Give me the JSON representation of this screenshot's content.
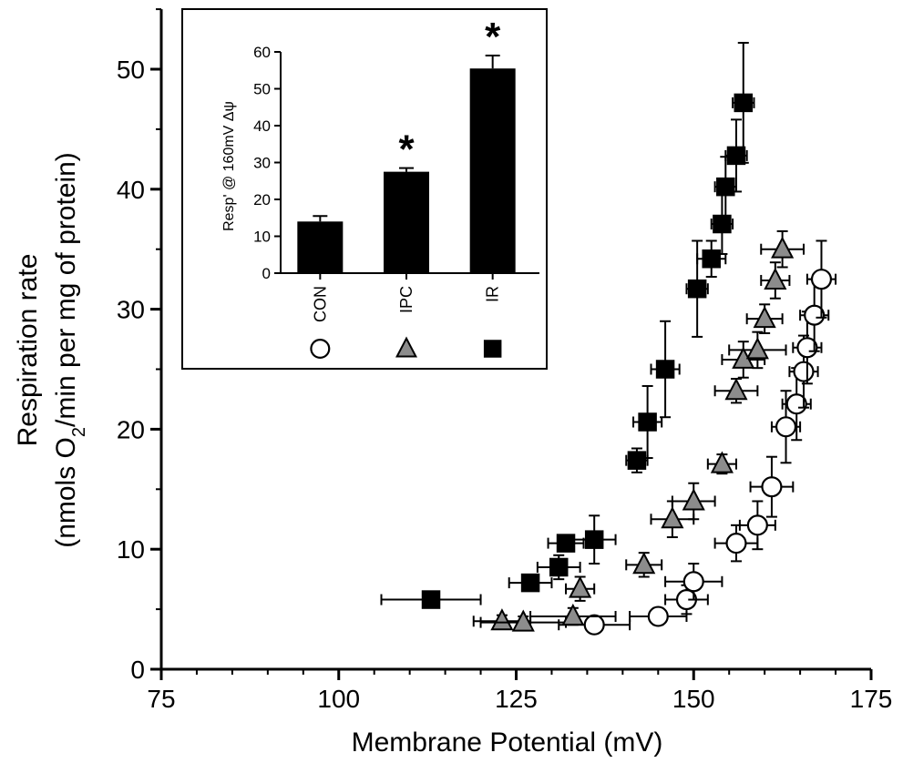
{
  "chart_data": [
    {
      "type": "scatter",
      "title": "",
      "xlabel": "Membrane Potential (mV)",
      "ylabel_line1": "Respiration rate",
      "ylabel_line2_prefix": "(nmols O",
      "ylabel_line2_sub": "2",
      "ylabel_line2_suffix": "/min per mg of protein)",
      "xlim": [
        75,
        175
      ],
      "ylim": [
        0,
        55
      ],
      "xticks": [
        "75",
        "100",
        "125",
        "150",
        "175"
      ],
      "yticks": [
        "0",
        "10",
        "20",
        "30",
        "40",
        "50"
      ],
      "grid": false,
      "series": [
        {
          "marker": "circle",
          "fill": "#ffffff",
          "points": [
            {
              "x": 136,
              "y": 3.7,
              "xerr": 5,
              "yerr": 0.6
            },
            {
              "x": 145,
              "y": 4.4,
              "xerr": 4,
              "yerr": 0.7
            },
            {
              "x": 149,
              "y": 5.8,
              "xerr": 3,
              "yerr": 1.2
            },
            {
              "x": 150,
              "y": 7.3,
              "xerr": 4,
              "yerr": 1.5
            },
            {
              "x": 156,
              "y": 10.5,
              "xerr": 3,
              "yerr": 1.5
            },
            {
              "x": 159,
              "y": 12,
              "xerr": 2.5,
              "yerr": 2
            },
            {
              "x": 161,
              "y": 15.2,
              "xerr": 3,
              "yerr": 2.5
            },
            {
              "x": 163,
              "y": 20.2,
              "xerr": 2,
              "yerr": 3
            },
            {
              "x": 164.5,
              "y": 22.1,
              "xerr": 2,
              "yerr": 3
            },
            {
              "x": 165.5,
              "y": 24.8,
              "xerr": 2,
              "yerr": 3
            },
            {
              "x": 166,
              "y": 26.8,
              "xerr": 2,
              "yerr": 3
            },
            {
              "x": 167,
              "y": 29.5,
              "xerr": 2,
              "yerr": 3
            },
            {
              "x": 168,
              "y": 32.5,
              "xerr": 2,
              "yerr": 3.2
            }
          ]
        },
        {
          "marker": "triangle",
          "fill": "#8c8c8c",
          "points": [
            {
              "x": 123,
              "y": 4,
              "xerr": 4,
              "yerr": 0.5
            },
            {
              "x": 126,
              "y": 3.9,
              "xerr": 6,
              "yerr": 0.5
            },
            {
              "x": 133,
              "y": 4.4,
              "xerr": 6,
              "yerr": 0.7
            },
            {
              "x": 134,
              "y": 6.7,
              "xerr": 2,
              "yerr": 1
            },
            {
              "x": 143,
              "y": 8.7,
              "xerr": 2.5,
              "yerr": 1
            },
            {
              "x": 147,
              "y": 12.5,
              "xerr": 3,
              "yerr": 1.5
            },
            {
              "x": 150,
              "y": 14,
              "xerr": 3,
              "yerr": 1.5
            },
            {
              "x": 154,
              "y": 17.1,
              "xerr": 2,
              "yerr": 0.8
            },
            {
              "x": 156,
              "y": 23.2,
              "xerr": 3,
              "yerr": 1
            },
            {
              "x": 157,
              "y": 25.8,
              "xerr": 3,
              "yerr": 1.5
            },
            {
              "x": 159,
              "y": 26.6,
              "xerr": 4,
              "yerr": 1.5
            },
            {
              "x": 160,
              "y": 29.2,
              "xerr": 2.5,
              "yerr": 1.2
            },
            {
              "x": 161.5,
              "y": 32.4,
              "xerr": 2,
              "yerr": 1.5
            },
            {
              "x": 162.5,
              "y": 35,
              "xerr": 3,
              "yerr": 1.5
            }
          ]
        },
        {
          "marker": "square",
          "fill": "#000000",
          "points": [
            {
              "x": 113,
              "y": 5.8,
              "xerr": 7,
              "yerr": 0
            },
            {
              "x": 127,
              "y": 7.2,
              "xerr": 3,
              "yerr": 0
            },
            {
              "x": 131,
              "y": 8.5,
              "xerr": 3,
              "yerr": 1
            },
            {
              "x": 132,
              "y": 10.5,
              "xerr": 2.5,
              "yerr": 0.5
            },
            {
              "x": 136,
              "y": 10.8,
              "xerr": 3,
              "yerr": 2
            },
            {
              "x": 142,
              "y": 17.4,
              "xerr": 1.5,
              "yerr": 1
            },
            {
              "x": 143.5,
              "y": 20.6,
              "xerr": 2,
              "yerr": 3
            },
            {
              "x": 146,
              "y": 25,
              "xerr": 2,
              "yerr": 4
            },
            {
              "x": 150.5,
              "y": 31.7,
              "xerr": 1.5,
              "yerr": 4
            },
            {
              "x": 152.5,
              "y": 34.2,
              "xerr": 2,
              "yerr": 1.5
            },
            {
              "x": 154,
              "y": 37.1,
              "xerr": 1.5,
              "yerr": 2.5
            },
            {
              "x": 154.5,
              "y": 40.2,
              "xerr": 1.5,
              "yerr": 2.5
            },
            {
              "x": 156,
              "y": 42.8,
              "xerr": 1.5,
              "yerr": 3
            },
            {
              "x": 157,
              "y": 47.2,
              "xerr": 1.5,
              "yerr": 5
            }
          ]
        }
      ]
    },
    {
      "type": "bar",
      "title": "",
      "ylabel": "Resp' @ 160mV Δψ",
      "ylim": [
        0,
        60
      ],
      "yticks": [
        "0",
        "10",
        "20",
        "30",
        "40",
        "50",
        "60"
      ],
      "categories": [
        "CON",
        "IPC",
        "IR"
      ],
      "values": [
        14,
        27.5,
        55.5
      ],
      "errors": [
        1.5,
        1,
        3.5
      ],
      "significance": [
        "",
        "*",
        "*"
      ],
      "category_markers": [
        "circle",
        "triangle",
        "square"
      ],
      "bar_color": "#000000"
    }
  ]
}
